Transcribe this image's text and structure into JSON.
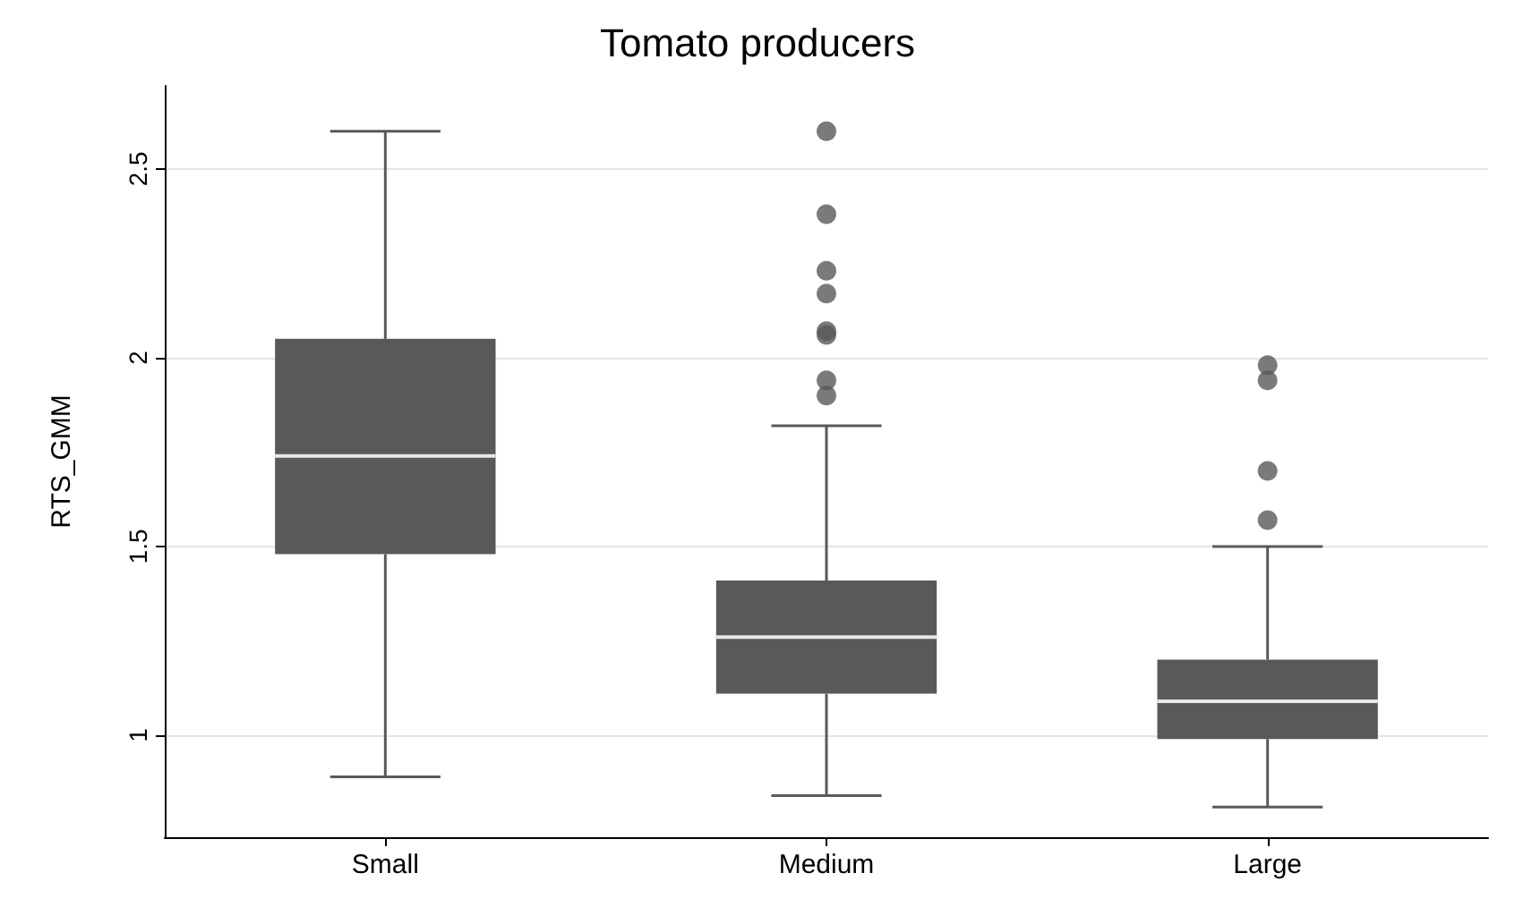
{
  "chart_data": {
    "type": "box",
    "title": "Tomato producers",
    "ylabel": "RTS_GMM",
    "categories": [
      "Small",
      "Medium",
      "Large"
    ],
    "series": [
      {
        "color": "#595959",
        "boxes": [
          {
            "low": 0.89,
            "q1": 1.48,
            "median": 1.74,
            "q3": 2.05,
            "high": 2.6
          },
          {
            "low": 0.84,
            "q1": 1.11,
            "median": 1.26,
            "q3": 1.41,
            "high": 1.82,
            "outliers": [
              2.6,
              2.38,
              2.23,
              2.17,
              2.07,
              2.06,
              1.94,
              1.9
            ]
          },
          {
            "low": 0.81,
            "q1": 0.99,
            "median": 1.09,
            "q3": 1.2,
            "high": 1.5,
            "outliers": [
              1.98,
              1.94,
              1.7,
              1.57
            ]
          }
        ]
      }
    ],
    "ylim": [
      0.73,
      2.72
    ],
    "yticks": [
      1,
      1.5,
      2,
      2.5
    ],
    "grid": "y"
  }
}
